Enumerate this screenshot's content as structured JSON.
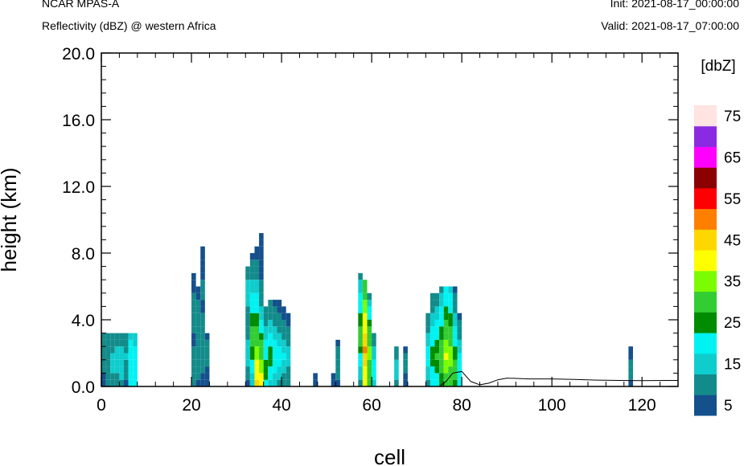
{
  "header": {
    "title": "NCAR MPAS-A",
    "subtitle": "Reflectivity (dBZ) @ western Africa",
    "init": "Init: 2021-08-17_00:00:00",
    "valid": "Valid: 2021-08-17_07:00:00"
  },
  "chart_data": {
    "type": "heatmap",
    "xlabel": "cell",
    "ylabel": "height (km)",
    "xlim": [
      0,
      128
    ],
    "ylim": [
      0,
      20
    ],
    "x_ticks": [
      "0",
      "20",
      "40",
      "60",
      "80",
      "100",
      "120"
    ],
    "y_ticks": [
      "0.0",
      "4.0",
      "8.0",
      "12.0",
      "16.0",
      "20.0"
    ],
    "colorbar": {
      "title": "[dbZ]",
      "levels": [
        5,
        10,
        15,
        20,
        25,
        30,
        35,
        40,
        45,
        50,
        55,
        60,
        65,
        70,
        75
      ],
      "labels": [
        "5",
        "15",
        "25",
        "35",
        "45",
        "55",
        "65",
        "75"
      ],
      "colors": [
        "#14508c",
        "#138b8b",
        "#0fcdcd",
        "#00f2f2",
        "#008b00",
        "#32cd32",
        "#7cfc00",
        "#ffff00",
        "#ffd700",
        "#ff7f00",
        "#ff0000",
        "#8b0000",
        "#ff00ff",
        "#8a2be2",
        "#ffe4e1"
      ]
    },
    "column_cells": [
      {
        "x": 0.5,
        "dbz": [
          8,
          8,
          10,
          10,
          10,
          12,
          12,
          12
        ]
      },
      {
        "x": 1.5,
        "dbz": [
          10,
          10,
          12,
          14,
          14,
          14,
          12,
          10
        ]
      },
      {
        "x": 2.5,
        "dbz": [
          12,
          14,
          15,
          15,
          15,
          14,
          14,
          12
        ]
      },
      {
        "x": 3.5,
        "dbz": [
          12,
          14,
          15,
          15,
          15,
          15,
          14,
          12
        ]
      },
      {
        "x": 4.5,
        "dbz": [
          14,
          15,
          15,
          15,
          15,
          15,
          14,
          12
        ]
      },
      {
        "x": 5.5,
        "dbz": [
          8,
          10,
          12,
          14,
          15,
          14,
          12,
          10
        ]
      },
      {
        "x": 6.5,
        "dbz": [
          22,
          24,
          24,
          24,
          24,
          24,
          22,
          18
        ]
      },
      {
        "x": 7.5,
        "dbz": [
          24,
          24,
          22,
          22,
          22,
          20,
          18,
          16
        ]
      },
      {
        "x": 20.5,
        "dbz": [
          10,
          10,
          12,
          12,
          10,
          10,
          8,
          8,
          10,
          10,
          10,
          12,
          12,
          10,
          8,
          8,
          6
        ]
      },
      {
        "x": 21.5,
        "dbz": [
          8,
          10,
          12,
          12,
          12,
          10,
          10,
          10,
          10,
          12,
          14,
          12,
          10,
          8,
          6
        ]
      },
      {
        "x": 22.5,
        "dbz": [
          6,
          8,
          10,
          10,
          12,
          12,
          10,
          10,
          10,
          10,
          10,
          8,
          8,
          10,
          12,
          10,
          8,
          8,
          6,
          6,
          6
        ]
      },
      {
        "x": 23.5,
        "dbz": [
          6,
          6,
          8,
          10,
          10,
          12,
          10,
          8
        ]
      },
      {
        "x": 32.5,
        "dbz": [
          8,
          10,
          14,
          16,
          18,
          18,
          16,
          14,
          12,
          10,
          12,
          14,
          16,
          18,
          18,
          16,
          14,
          10
        ]
      },
      {
        "x": 33.5,
        "dbz": [
          15,
          18,
          22,
          24,
          26,
          28,
          30,
          32,
          30,
          28,
          26,
          24,
          22,
          20,
          18,
          16,
          14,
          12,
          10,
          8
        ]
      },
      {
        "x": 34.5,
        "dbz": [
          45,
          44,
          42,
          40,
          38,
          36,
          34,
          32,
          30,
          28,
          26,
          24,
          22,
          20,
          18,
          16,
          14,
          12,
          10,
          8,
          6
        ]
      },
      {
        "x": 35.5,
        "dbz": [
          40,
          40,
          38,
          36,
          34,
          32,
          30,
          28,
          24,
          20,
          18,
          16,
          14,
          12,
          10,
          10,
          8,
          8,
          8,
          8,
          8,
          8,
          6
        ]
      },
      {
        "x": 36.5,
        "dbz": [
          24,
          26,
          28,
          26,
          24,
          22,
          20,
          18,
          16,
          14,
          12,
          10
        ]
      },
      {
        "x": 37.5,
        "dbz": [
          18,
          20,
          24,
          26,
          28,
          26,
          24,
          22,
          18,
          16,
          14,
          12,
          10
        ]
      },
      {
        "x": 38.5,
        "dbz": [
          16,
          18,
          20,
          22,
          24,
          22,
          20,
          18,
          16,
          14,
          12,
          10,
          8
        ]
      },
      {
        "x": 39.5,
        "dbz": [
          14,
          16,
          18,
          20,
          22,
          20,
          18,
          16,
          14,
          12,
          10,
          8,
          6
        ]
      },
      {
        "x": 40.5,
        "dbz": [
          12,
          14,
          16,
          18,
          20,
          18,
          16,
          14,
          12,
          10,
          8,
          6
        ]
      },
      {
        "x": 41.5,
        "dbz": [
          10,
          12,
          14,
          16,
          18,
          16,
          14,
          12,
          10,
          8,
          6
        ]
      },
      {
        "x": 47.5,
        "dbz": [
          6,
          8
        ]
      },
      {
        "x": 51.5,
        "dbz": [
          6,
          8
        ]
      },
      {
        "x": 52.5,
        "dbz": [
          8,
          10,
          12,
          14,
          12,
          10,
          8
        ]
      },
      {
        "x": 57.5,
        "dbz": [
          14,
          16,
          18,
          20,
          24,
          28,
          30,
          32,
          30,
          28,
          26,
          24,
          22,
          20,
          18,
          16,
          12
        ]
      },
      {
        "x": 58.5,
        "dbz": [
          40,
          42,
          44,
          46,
          48,
          50,
          48,
          46,
          44,
          42,
          40,
          38,
          36,
          34,
          32,
          30
        ]
      },
      {
        "x": 59.5,
        "dbz": [
          30,
          32,
          34,
          34,
          36,
          36,
          34,
          32,
          30,
          28,
          24,
          20,
          16,
          12
        ]
      },
      {
        "x": 60.5,
        "dbz": [
          18,
          20,
          22,
          20,
          18,
          16,
          14,
          12
        ]
      },
      {
        "x": 65.5,
        "dbz": [
          14,
          16,
          18,
          16,
          14,
          12
        ]
      },
      {
        "x": 67.5,
        "dbz": [
          6,
          8,
          10,
          12,
          10,
          8
        ]
      },
      {
        "x": 72.5,
        "dbz": [
          14,
          16,
          18,
          20,
          22,
          20,
          18,
          16,
          14,
          12,
          10
        ]
      },
      {
        "x": 73.5,
        "dbz": [
          20,
          22,
          24,
          26,
          28,
          26,
          24,
          22,
          20,
          18,
          16,
          14,
          12,
          10
        ]
      },
      {
        "x": 74.5,
        "dbz": [
          22,
          24,
          26,
          28,
          30,
          28,
          26,
          24,
          22,
          20,
          18,
          16,
          14,
          12
        ]
      },
      {
        "x": 75.5,
        "dbz": [
          26,
          28,
          30,
          32,
          34,
          32,
          30,
          28,
          26,
          24,
          22,
          20,
          18,
          16,
          14
        ]
      },
      {
        "x": 76.5,
        "dbz": [
          32,
          34,
          36,
          38,
          40,
          38,
          36,
          34,
          32,
          30,
          28,
          26,
          24,
          22,
          20
        ]
      },
      {
        "x": 77.5,
        "dbz": [
          30,
          32,
          34,
          36,
          38,
          36,
          34,
          32,
          30,
          28,
          26,
          24,
          22,
          20,
          18
        ]
      },
      {
        "x": 78.5,
        "dbz": [
          28,
          30,
          32,
          30,
          28,
          26,
          24,
          22,
          20,
          18,
          16,
          14,
          12,
          10,
          8
        ]
      },
      {
        "x": 79.5,
        "dbz": [
          20,
          22,
          24,
          22,
          20,
          18,
          16,
          14,
          12,
          10,
          8
        ]
      },
      {
        "x": 117.5,
        "dbz": [
          8,
          10,
          12,
          10,
          8,
          6
        ]
      }
    ],
    "terrain_km": [
      [
        0,
        0
      ],
      [
        75,
        0
      ],
      [
        76.5,
        0.3
      ],
      [
        78,
        0.8
      ],
      [
        80,
        0.9
      ],
      [
        82,
        0.3
      ],
      [
        84,
        0.1
      ],
      [
        86,
        0.2
      ],
      [
        88,
        0.4
      ],
      [
        90,
        0.5
      ],
      [
        95,
        0.45
      ],
      [
        100,
        0.45
      ],
      [
        105,
        0.42
      ],
      [
        110,
        0.38
      ],
      [
        115,
        0.36
      ],
      [
        120,
        0.35
      ],
      [
        125,
        0.36
      ],
      [
        128,
        0.36
      ]
    ]
  }
}
